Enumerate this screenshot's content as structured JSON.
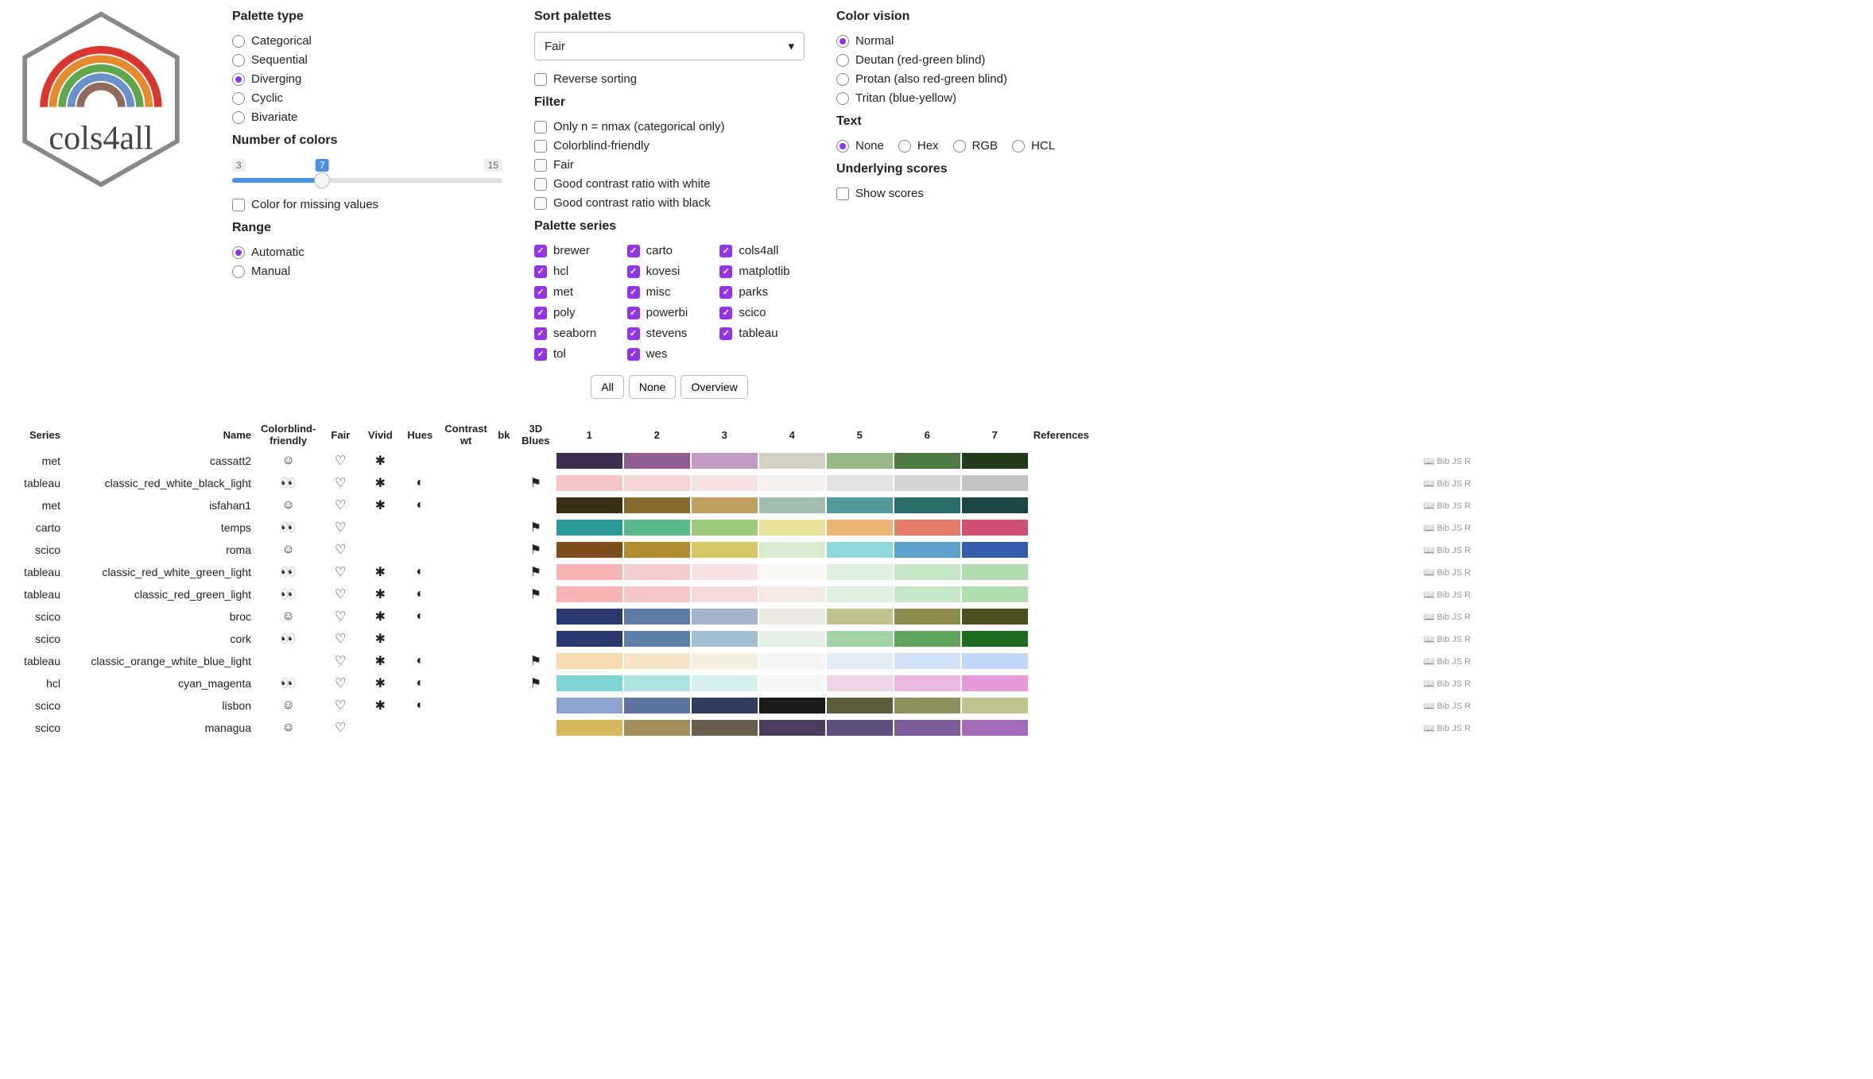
{
  "logo_text": "cols4all",
  "palette_type": {
    "heading": "Palette type",
    "options": [
      "Categorical",
      "Sequential",
      "Diverging",
      "Cyclic",
      "Bivariate"
    ],
    "selected": "Diverging"
  },
  "num_colors": {
    "heading": "Number of colors",
    "min": 3,
    "max": 15,
    "value": 7
  },
  "missing": {
    "label": "Color for missing values",
    "checked": false
  },
  "range": {
    "heading": "Range",
    "options": [
      "Automatic",
      "Manual"
    ],
    "selected": "Automatic"
  },
  "sort": {
    "heading": "Sort palettes",
    "selected": "Fair",
    "reverse_label": "Reverse sorting",
    "reverse_checked": false
  },
  "filter": {
    "heading": "Filter",
    "options": [
      {
        "label": "Only n = nmax (categorical only)",
        "checked": false
      },
      {
        "label": "Colorblind-friendly",
        "checked": false
      },
      {
        "label": "Fair",
        "checked": false
      },
      {
        "label": "Good contrast ratio with white",
        "checked": false
      },
      {
        "label": "Good contrast ratio with black",
        "checked": false
      }
    ]
  },
  "series": {
    "heading": "Palette series",
    "items": [
      "brewer",
      "carto",
      "cols4all",
      "hcl",
      "kovesi",
      "matplotlib",
      "met",
      "misc",
      "parks",
      "poly",
      "powerbi",
      "scico",
      "seaborn",
      "stevens",
      "tableau",
      "tol",
      "wes"
    ]
  },
  "buttons": {
    "all": "All",
    "none": "None",
    "overview": "Overview"
  },
  "vision": {
    "heading": "Color vision",
    "options": [
      "Normal",
      "Deutan (red-green blind)",
      "Protan (also red-green blind)",
      "Tritan (blue-yellow)"
    ],
    "selected": "Normal"
  },
  "text": {
    "heading": "Text",
    "options": [
      "None",
      "Hex",
      "RGB",
      "HCL"
    ],
    "selected": "None"
  },
  "scores": {
    "heading": "Underlying scores",
    "label": "Show scores",
    "checked": false
  },
  "table": {
    "headers": {
      "series": "Series",
      "name": "Name",
      "cb": "Colorblind-friendly",
      "fair": "Fair",
      "vivid": "Vivid",
      "hues": "Hues",
      "cwt": "Contrast wt",
      "cbk": "bk",
      "blues": "3D Blues",
      "refs": "References"
    },
    "col_nums": [
      "1",
      "2",
      "3",
      "4",
      "5",
      "6",
      "7"
    ],
    "ref_labels": {
      "book": "📖",
      "bib": "Bib",
      "js": "JS",
      "r": "R"
    },
    "icons": {
      "smile": "☺",
      "eyes": "👀",
      "heart": "♡",
      "star": "✱",
      "yin": "◐",
      "flag": "⚑"
    },
    "rows": [
      {
        "series": "met",
        "name": "cassatt2",
        "cb": "smile",
        "fair": "heart",
        "vivid": "star",
        "hues": "",
        "blues": "",
        "colors": [
          "#3d2d4e",
          "#905f92",
          "#c19bc3",
          "#d4d0c3",
          "#98b987",
          "#507a44",
          "#213a1a"
        ]
      },
      {
        "series": "tableau",
        "name": "classic_red_white_black_light",
        "cb": "eyes",
        "fair": "heart",
        "vivid": "star",
        "hues": "yin",
        "blues": "flag",
        "colors": [
          "#f5c4c4",
          "#f5d4d4",
          "#f5e2e2",
          "#f5f0f0",
          "#e3e3e3",
          "#d4d4d4",
          "#c4c4c4"
        ]
      },
      {
        "series": "met",
        "name": "isfahan1",
        "cb": "smile",
        "fair": "heart",
        "vivid": "star",
        "hues": "yin",
        "blues": "",
        "colors": [
          "#3b2f13",
          "#856a2d",
          "#bda05e",
          "#a3bdaf",
          "#529a99",
          "#2a6e6c",
          "#1a4745"
        ]
      },
      {
        "series": "carto",
        "name": "temps",
        "cb": "eyes",
        "fair": "heart",
        "vivid": "",
        "hues": "",
        "blues": "flag",
        "colors": [
          "#2c9999",
          "#5ab88a",
          "#9cc97c",
          "#e8e29a",
          "#eab676",
          "#e57e6a",
          "#cf5073"
        ]
      },
      {
        "series": "scico",
        "name": "roma",
        "cb": "smile",
        "fair": "heart",
        "vivid": "",
        "hues": "",
        "blues": "flag",
        "colors": [
          "#7e4b1a",
          "#b08d33",
          "#d6c969",
          "#d9ecd0",
          "#8fd8db",
          "#5ca1cc",
          "#345eab"
        ]
      },
      {
        "series": "tableau",
        "name": "classic_red_white_green_light",
        "cb": "eyes",
        "fair": "heart",
        "vivid": "star",
        "hues": "yin",
        "blues": "flag",
        "colors": [
          "#f5b5b5",
          "#f5cccc",
          "#f5e2e2",
          "#f8f8f5",
          "#def0de",
          "#c7e6c7",
          "#b0dcb0"
        ]
      },
      {
        "series": "tableau",
        "name": "classic_red_green_light",
        "cb": "eyes",
        "fair": "heart",
        "vivid": "star",
        "hues": "yin",
        "blues": "flag",
        "colors": [
          "#f5b5b5",
          "#f5c7c7",
          "#f5d9d9",
          "#f3ebe3",
          "#def0de",
          "#c7e6c7",
          "#b0dcb0"
        ]
      },
      {
        "series": "scico",
        "name": "broc",
        "cb": "smile",
        "fair": "heart",
        "vivid": "star",
        "hues": "yin",
        "blues": "",
        "colors": [
          "#2a3a70",
          "#5e7ba3",
          "#a0b3c9",
          "#eaeae3",
          "#c2c28f",
          "#8a8a4d",
          "#4d4d1f"
        ]
      },
      {
        "series": "scico",
        "name": "cork",
        "cb": "eyes",
        "fair": "heart",
        "vivid": "star",
        "hues": "",
        "blues": "",
        "colors": [
          "#2a3a70",
          "#5c80a8",
          "#a3c0d1",
          "#e5efe8",
          "#a3d1a8",
          "#5ea35e",
          "#1f6b1f"
        ]
      },
      {
        "series": "tableau",
        "name": "classic_orange_white_blue_light",
        "cb": "",
        "fair": "heart",
        "vivid": "star",
        "hues": "yin",
        "blues": "flag",
        "colors": [
          "#f5d9b0",
          "#f5e4c7",
          "#f5efde",
          "#f5f5f5",
          "#e3ebf5",
          "#d1e0f5",
          "#bfd6f5"
        ]
      },
      {
        "series": "hcl",
        "name": "cyan_magenta",
        "cb": "eyes",
        "fair": "heart",
        "vivid": "star",
        "hues": "yin",
        "blues": "flag",
        "colors": [
          "#7fd4d4",
          "#aee3e3",
          "#d6f0f0",
          "#f5f5f5",
          "#f0d6ea",
          "#eab8e0",
          "#e39ad6"
        ]
      },
      {
        "series": "scico",
        "name": "lisbon",
        "cb": "smile",
        "fair": "heart",
        "vivid": "star",
        "hues": "yin",
        "blues": "",
        "colors": [
          "#8fa3d1",
          "#5c73a0",
          "#2f3d5c",
          "#1a1a1a",
          "#5c5c3d",
          "#8f8f5c",
          "#c2c28f"
        ]
      },
      {
        "series": "scico",
        "name": "managua",
        "cb": "smile",
        "fair": "heart",
        "vivid": "",
        "hues": "",
        "blues": "",
        "colors": [
          "#d4b85c",
          "#a38f5c",
          "#6b5c4d",
          "#4d3d5c",
          "#5c4d7a",
          "#7e5c99",
          "#a36bb8"
        ]
      }
    ]
  }
}
